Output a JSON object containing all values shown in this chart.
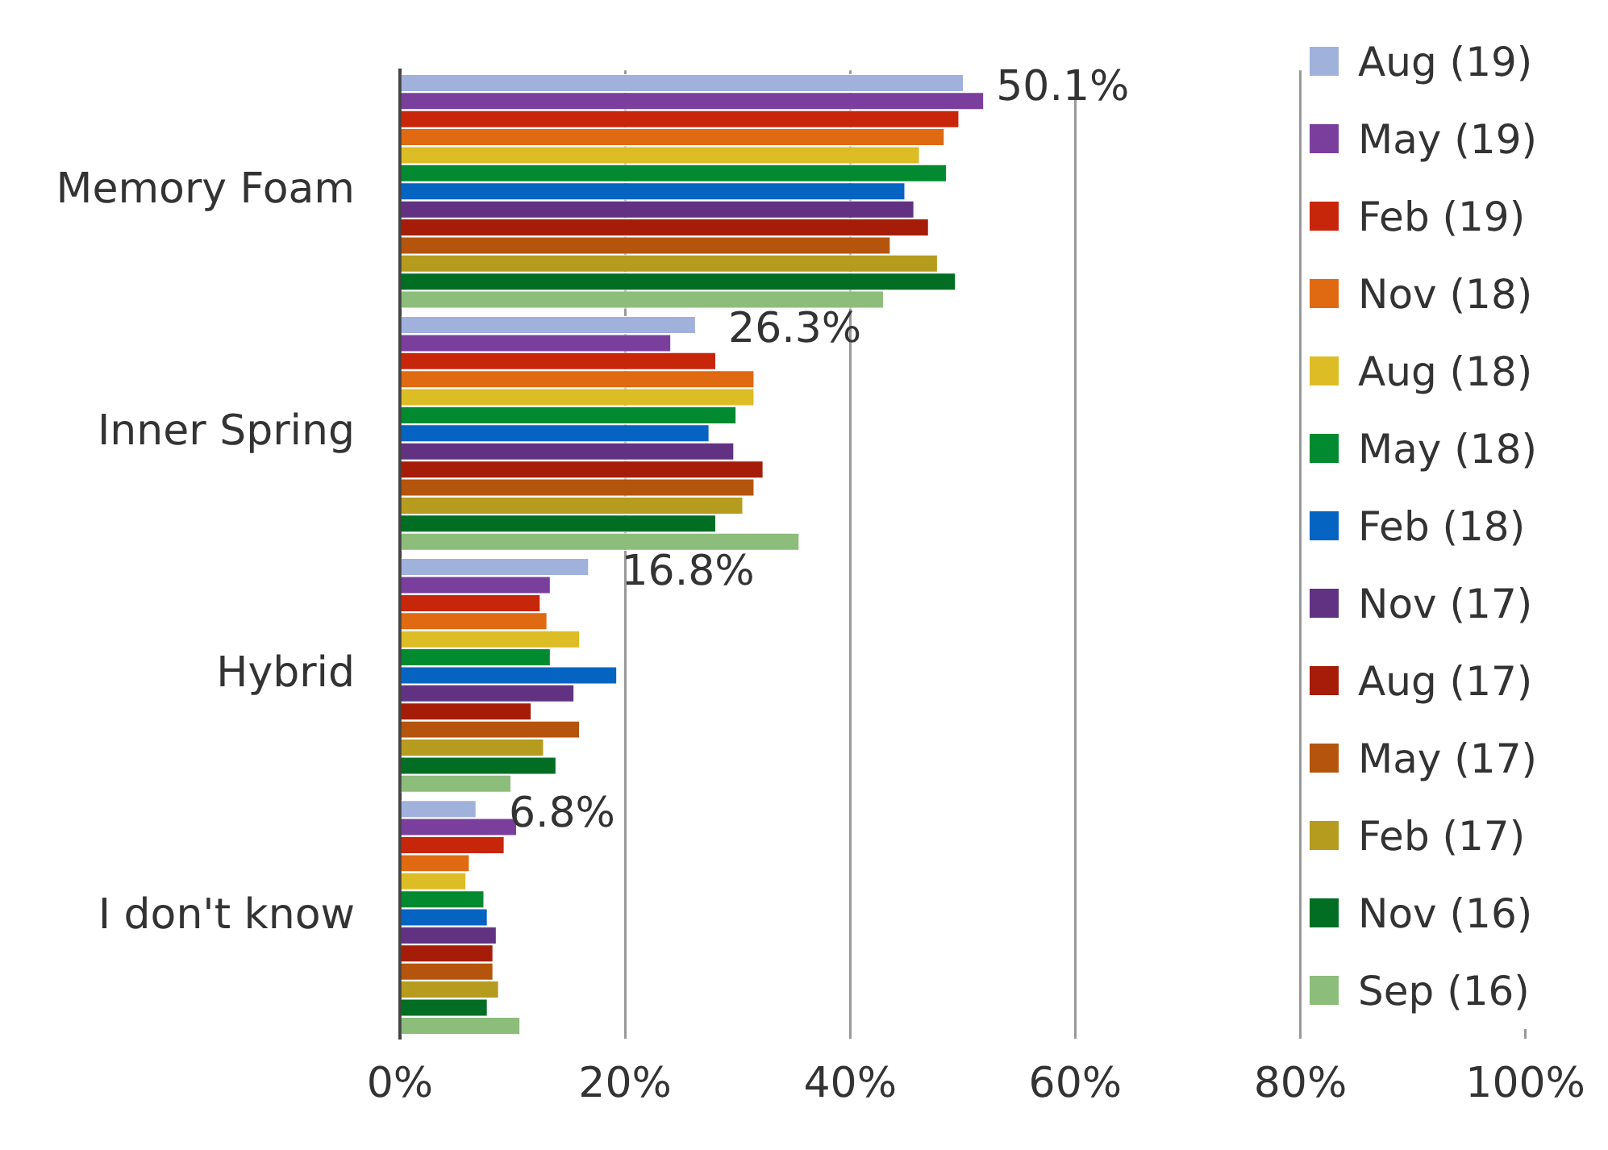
{
  "chart_data": {
    "type": "bar",
    "orientation": "horizontal",
    "categories": [
      "Memory Foam",
      "Inner Spring",
      "Hybrid",
      "I don't know"
    ],
    "series": [
      {
        "name": "Aug (19)",
        "color": "#a0b1db",
        "values": [
          50.1,
          26.3,
          16.8,
          6.8
        ],
        "value_labels": [
          "50.1%",
          "26.3%",
          "16.8%",
          "6.8%"
        ]
      },
      {
        "name": "May (19)",
        "color": "#7a3f9d",
        "values": [
          51.9,
          24.1,
          13.4,
          10.4
        ]
      },
      {
        "name": "Feb (19)",
        "color": "#c8260b",
        "values": [
          49.7,
          28.1,
          12.5,
          9.3
        ]
      },
      {
        "name": "Nov (18)",
        "color": "#df6a12",
        "values": [
          48.4,
          31.5,
          13.1,
          6.2
        ]
      },
      {
        "name": "Aug (18)",
        "color": "#dcbd25",
        "values": [
          46.2,
          31.5,
          16.0,
          5.9
        ]
      },
      {
        "name": "May (18)",
        "color": "#018a2f",
        "values": [
          48.6,
          29.9,
          13.4,
          7.5
        ]
      },
      {
        "name": "Feb (18)",
        "color": "#0564c1",
        "values": [
          44.9,
          27.5,
          19.3,
          7.8
        ]
      },
      {
        "name": "Nov (17)",
        "color": "#623282",
        "values": [
          45.7,
          29.7,
          15.5,
          8.6
        ]
      },
      {
        "name": "Aug (17)",
        "color": "#a51d08",
        "values": [
          47.0,
          32.3,
          11.7,
          8.3
        ]
      },
      {
        "name": "May (17)",
        "color": "#b5540c",
        "values": [
          43.6,
          31.5,
          16.0,
          8.3
        ]
      },
      {
        "name": "Feb (17)",
        "color": "#b59b1e",
        "values": [
          47.8,
          30.5,
          12.8,
          8.8
        ]
      },
      {
        "name": "Nov (16)",
        "color": "#016e23",
        "values": [
          49.4,
          28.1,
          13.9,
          7.8
        ]
      },
      {
        "name": "Sep (16)",
        "color": "#8cbd7a",
        "values": [
          43.0,
          35.5,
          9.9,
          10.7
        ]
      }
    ],
    "xlim": [
      0,
      100
    ],
    "xticks": [
      {
        "value": 0,
        "label": "0%"
      },
      {
        "value": 20,
        "label": "20%"
      },
      {
        "value": 40,
        "label": "40%"
      },
      {
        "value": 60,
        "label": "60%"
      },
      {
        "value": 80,
        "label": "80%"
      },
      {
        "value": 100,
        "label": "100%"
      }
    ],
    "grid": "x",
    "legend": "right"
  }
}
